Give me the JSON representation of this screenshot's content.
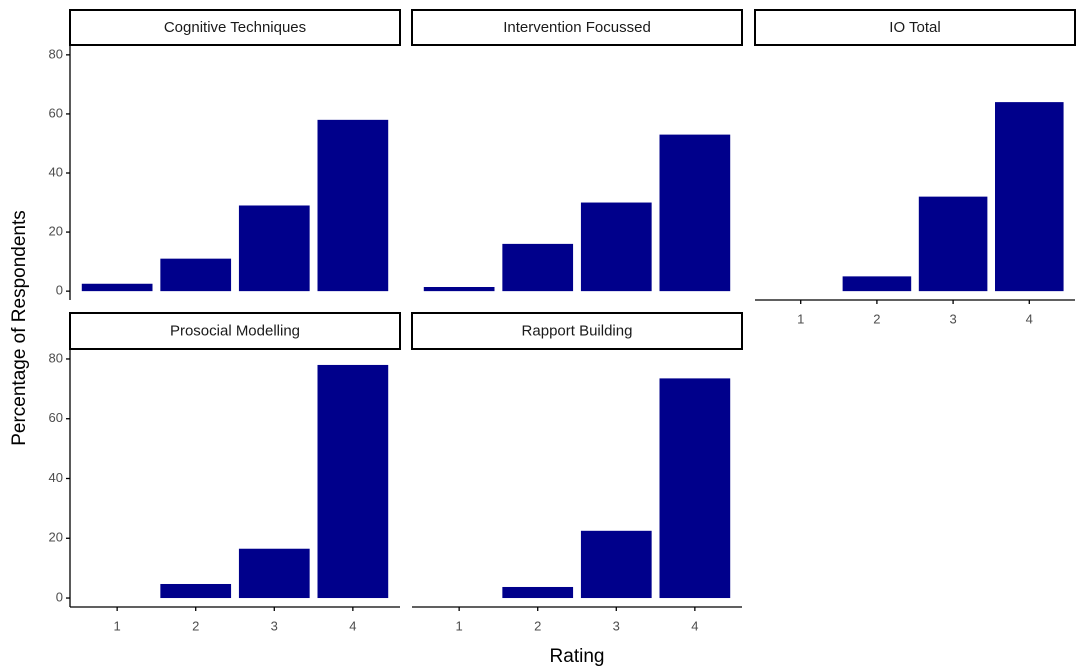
{
  "xlabel": "Rating",
  "ylabel": "Percentage of Respondents",
  "chart_data": [
    {
      "type": "bar",
      "title": "Cognitive Techniques",
      "categories": [
        "1",
        "2",
        "3",
        "4"
      ],
      "values": [
        2.5,
        11,
        29,
        58
      ],
      "color": "#00008b",
      "ylim": [
        -3,
        83
      ],
      "yticks": [
        0,
        20,
        40,
        60,
        80
      ]
    },
    {
      "type": "bar",
      "title": "Intervention Focussed",
      "categories": [
        "1",
        "2",
        "3",
        "4"
      ],
      "values": [
        1.4,
        16,
        30,
        53
      ],
      "color": "#00008b",
      "ylim": [
        -3,
        83
      ]
    },
    {
      "type": "bar",
      "title": "IO Total",
      "categories": [
        "1",
        "2",
        "3",
        "4"
      ],
      "values": [
        0,
        5,
        32,
        64
      ],
      "color": "#00008b",
      "ylim": [
        -3,
        83
      ]
    },
    {
      "type": "bar",
      "title": "Prosocial Modelling",
      "categories": [
        "1",
        "2",
        "3",
        "4"
      ],
      "values": [
        0,
        4.7,
        16.5,
        78
      ],
      "color": "#00008b",
      "ylim": [
        -3,
        83
      ],
      "yticks": [
        0,
        20,
        40,
        60,
        80
      ]
    },
    {
      "type": "bar",
      "title": "Rapport Building",
      "categories": [
        "1",
        "2",
        "3",
        "4"
      ],
      "values": [
        0,
        3.7,
        22.5,
        73.5
      ],
      "color": "#00008b",
      "ylim": [
        -3,
        83
      ]
    }
  ]
}
